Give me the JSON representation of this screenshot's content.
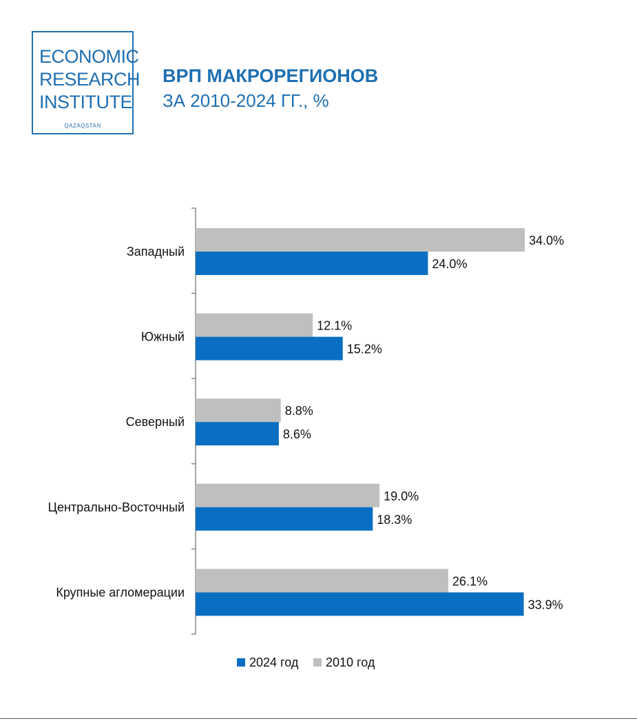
{
  "logo": {
    "line1": "ECONOMIC",
    "line2": "RESEARCH",
    "line3": "INSTITUTE",
    "sub": "QAZAQSTAN"
  },
  "header": {
    "title": "ВРП МАКРОРЕГИОНОВ",
    "subtitle": "ЗА 2010-2024 ГГ., %"
  },
  "colors": {
    "brand": "#1f6fb2",
    "series_2024": "#0a6fc2",
    "series_2010": "#bfbfbf",
    "axis": "#888888"
  },
  "chart_data": {
    "type": "bar",
    "orientation": "horizontal",
    "categories": [
      "Западный",
      "Южный",
      "Северный",
      "Центрально-Восточный",
      "Крупные агломерации"
    ],
    "series": [
      {
        "name": "2010 год",
        "values": [
          34.0,
          12.1,
          8.8,
          19.0,
          26.1
        ],
        "labels": [
          "34.0%",
          "12.1%",
          "8.8%",
          "19.0%",
          "26.1%"
        ]
      },
      {
        "name": "2024 год",
        "values": [
          24.0,
          15.2,
          8.6,
          18.3,
          33.9
        ],
        "labels": [
          "24.0%",
          "15.2%",
          "8.6%",
          "18.3%",
          "33.9%"
        ]
      }
    ],
    "legend": [
      "2024 год",
      "2010 год"
    ],
    "legend_position": "bottom",
    "xlim": [
      0,
      34
    ],
    "grid": false
  }
}
